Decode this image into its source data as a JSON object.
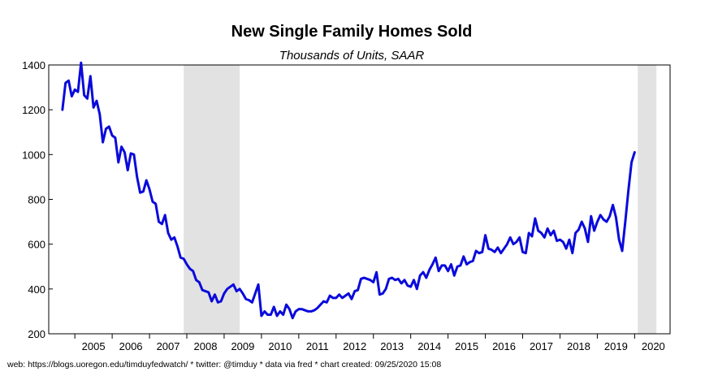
{
  "chart_data": {
    "type": "line",
    "title": "New Single Family Homes Sold",
    "subtitle": "Thousands of Units, SAAR",
    "xlabel": "",
    "ylabel": "",
    "ylim": [
      200,
      1400
    ],
    "yticks": [
      200,
      400,
      600,
      800,
      1000,
      1200,
      1400
    ],
    "xticks": [
      "2005",
      "2006",
      "2007",
      "2008",
      "2009",
      "2010",
      "2011",
      "2012",
      "2013",
      "2014",
      "2015",
      "2016",
      "2017",
      "2018",
      "2019",
      "2020"
    ],
    "grid": false,
    "legend": "none",
    "line_color": "#0a0adc",
    "shade_color": "#e2e2e2",
    "recessions": [
      {
        "start": "2007-12",
        "end": "2009-06"
      },
      {
        "start": "2020-02",
        "end": "2020-08"
      }
    ],
    "series": [
      {
        "start": "2004-09",
        "frequency": "monthly",
        "values": [
          1200,
          1320,
          1330,
          1260,
          1290,
          1280,
          1410,
          1265,
          1250,
          1350,
          1210,
          1240,
          1180,
          1055,
          1115,
          1125,
          1085,
          1075,
          965,
          1035,
          1010,
          930,
          1005,
          1000,
          900,
          830,
          835,
          885,
          845,
          790,
          780,
          700,
          690,
          730,
          650,
          620,
          630,
          590,
          540,
          535,
          510,
          490,
          480,
          440,
          430,
          395,
          390,
          385,
          345,
          375,
          340,
          345,
          380,
          400,
          410,
          420,
          390,
          400,
          380,
          355,
          350,
          340,
          380,
          420,
          280,
          300,
          285,
          285,
          320,
          280,
          300,
          285,
          330,
          310,
          270,
          300,
          310,
          310,
          305,
          300,
          300,
          305,
          315,
          330,
          345,
          340,
          370,
          360,
          360,
          375,
          360,
          370,
          380,
          355,
          390,
          395,
          445,
          450,
          445,
          440,
          430,
          475,
          375,
          380,
          400,
          445,
          450,
          440,
          445,
          425,
          440,
          415,
          410,
          440,
          400,
          460,
          475,
          450,
          485,
          510,
          540,
          480,
          505,
          505,
          480,
          510,
          460,
          500,
          505,
          545,
          510,
          520,
          525,
          570,
          560,
          565,
          640,
          580,
          575,
          565,
          585,
          560,
          580,
          600,
          630,
          600,
          610,
          630,
          565,
          560,
          650,
          635,
          715,
          660,
          650,
          630,
          670,
          640,
          660,
          615,
          620,
          610,
          580,
          620,
          560,
          650,
          665,
          700,
          670,
          610,
          725,
          660,
          700,
          730,
          710,
          700,
          725,
          775,
          720,
          620,
          570,
          700,
          840,
          965,
          1010
        ]
      }
    ]
  },
  "footer": {
    "text": "web: https://blogs.uoregon.edu/timduyfedwatch/ * twitter: @timduy * data via fred * chart created: 09/25/2020 15:08"
  }
}
